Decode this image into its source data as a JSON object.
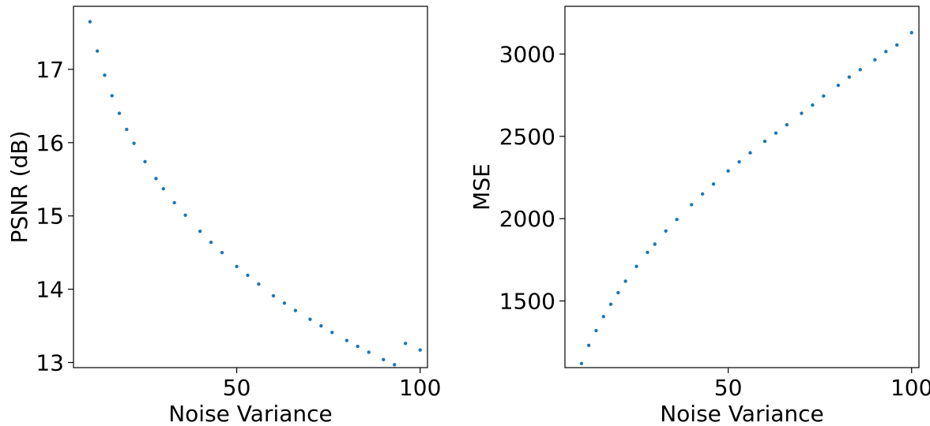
{
  "chart_data": [
    {
      "type": "scatter",
      "xlabel": "Noise Variance",
      "ylabel": "PSNR (dB)",
      "xlim": [
        5.5,
        102
      ],
      "ylim": [
        12.93,
        17.86
      ],
      "xticks": [
        50,
        100
      ],
      "yticks": [
        13,
        14,
        15,
        16,
        17
      ],
      "x_tick_labels": [
        "50",
        "100"
      ],
      "y_tick_labels": [
        "13",
        "14",
        "15",
        "16",
        "17"
      ],
      "marker_color": "#1f77b4",
      "series": [
        {
          "x": [
            10,
            12,
            14,
            16,
            18,
            20,
            22,
            25,
            28,
            30,
            33,
            36,
            40,
            43,
            46,
            50,
            53,
            56,
            60,
            63,
            66,
            70,
            73,
            76,
            80,
            83,
            86,
            90,
            93,
            96,
            100
          ],
          "values": [
            17.65,
            17.25,
            16.92,
            16.64,
            16.4,
            16.18,
            15.99,
            15.74,
            15.51,
            15.37,
            15.18,
            15.01,
            14.79,
            14.64,
            14.5,
            14.31,
            14.19,
            14.07,
            13.91,
            13.81,
            13.71,
            13.59,
            13.5,
            13.41,
            13.3,
            13.22,
            13.14,
            13.04,
            12.97,
            13.26,
            13.17
          ]
        }
      ],
      "grid": false,
      "legend": false
    },
    {
      "type": "scatter",
      "xlabel": "Noise Variance",
      "ylabel": "MSE",
      "xlim": [
        5.5,
        102
      ],
      "ylim": [
        1095,
        3290
      ],
      "xticks": [
        50,
        100
      ],
      "yticks": [
        1500,
        2000,
        2500,
        3000
      ],
      "x_tick_labels": [
        "50",
        "100"
      ],
      "y_tick_labels": [
        "1500",
        "2000",
        "2500",
        "3000"
      ],
      "marker_color": "#1f77b4",
      "series": [
        {
          "x": [
            10,
            12,
            14,
            16,
            18,
            20,
            22,
            25,
            28,
            30,
            33,
            36,
            40,
            43,
            46,
            50,
            53,
            56,
            60,
            63,
            66,
            70,
            73,
            76,
            80,
            83,
            86,
            90,
            93,
            96,
            100
          ],
          "values": [
            1120,
            1230,
            1320,
            1405,
            1480,
            1550,
            1620,
            1710,
            1795,
            1845,
            1925,
            1995,
            2085,
            2150,
            2210,
            2290,
            2345,
            2400,
            2470,
            2520,
            2570,
            2640,
            2690,
            2745,
            2810,
            2860,
            2905,
            2965,
            3015,
            3055,
            3130
          ]
        }
      ],
      "grid": false,
      "legend": false
    }
  ]
}
